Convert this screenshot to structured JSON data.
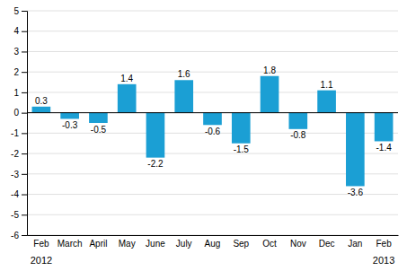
{
  "chart_data": {
    "type": "bar",
    "categories": [
      "Feb",
      "March",
      "April",
      "May",
      "June",
      "July",
      "Aug",
      "Sep",
      "Oct",
      "Nov",
      "Dec",
      "Jan",
      "Feb"
    ],
    "values": [
      0.3,
      -0.3,
      -0.5,
      1.4,
      -2.2,
      1.6,
      -0.6,
      -1.5,
      1.8,
      -0.8,
      1.1,
      -3.6,
      -1.4
    ],
    "color": "#1b9fd4",
    "ylim": [
      -6,
      5
    ],
    "yticks": [
      -6,
      -5,
      -4,
      -3,
      -2,
      -1,
      0,
      1,
      2,
      3,
      4,
      5
    ],
    "grid": true,
    "data_labels": true,
    "annotations": [
      "2012",
      "2013"
    ]
  }
}
